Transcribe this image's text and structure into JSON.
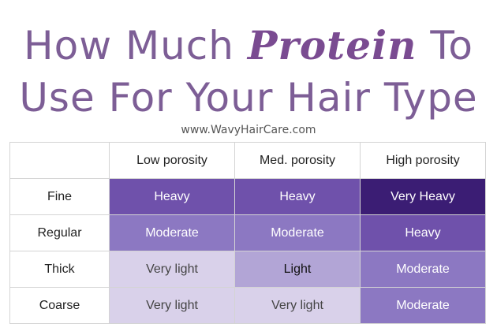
{
  "title": {
    "line1_start": "How Much",
    "emphasis": "Protein",
    "line1_end": "To",
    "line2": "Use For Your Hair Type"
  },
  "subtitle": "www.WavyHairCare.com",
  "table": {
    "columns": [
      "Low porosity",
      "Med. porosity",
      "High porosity"
    ],
    "rows": [
      {
        "label": "Fine",
        "cells": [
          "Heavy",
          "Heavy",
          "Very Heavy"
        ],
        "fills": [
          "#6f51ab",
          "#6f51ab",
          "#3b1d74"
        ]
      },
      {
        "label": "Regular",
        "cells": [
          "Moderate",
          "Moderate",
          "Heavy"
        ],
        "fills": [
          "#8c78c2",
          "#8c78c2",
          "#6f51ab"
        ]
      },
      {
        "label": "Thick",
        "cells": [
          "Very light",
          "Light",
          "Moderate"
        ],
        "fills": [
          "#d9d1ea",
          "#b2a5d6",
          "#8c78c2"
        ]
      },
      {
        "label": "Coarse",
        "cells": [
          "Very light",
          "Very light",
          "Moderate"
        ],
        "fills": [
          "#d9d1ea",
          "#d9d1ea",
          "#8c78c2"
        ]
      }
    ]
  }
}
